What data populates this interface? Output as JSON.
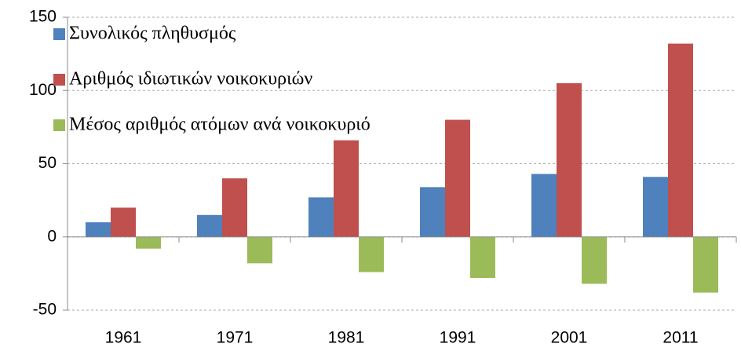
{
  "chart_data": {
    "type": "bar",
    "categories": [
      "1961",
      "1971",
      "1981",
      "1991",
      "2001",
      "2011"
    ],
    "series": [
      {
        "name": "Συνολικός πληθυσμός",
        "color": "#4f81bd",
        "values": [
          10,
          15,
          27,
          34,
          43,
          41
        ]
      },
      {
        "name": "Αριθμός ιδιωτικών νοικοκυριών",
        "color": "#c0504d",
        "values": [
          20,
          40,
          66,
          80,
          105,
          132
        ]
      },
      {
        "name": "Μέσος αριθμός ατόμων ανά νοικοκυριό",
        "color": "#9bbb59",
        "values": [
          -8,
          -18,
          -24,
          -28,
          -32,
          -38
        ]
      }
    ],
    "ylim": [
      -50,
      150
    ],
    "yticks": [
      -50,
      0,
      50,
      100,
      150
    ],
    "grid": true,
    "legend": "top-left"
  }
}
